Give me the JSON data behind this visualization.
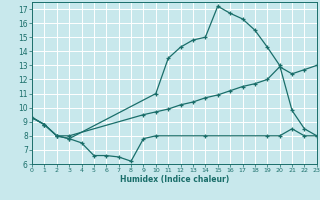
{
  "xlabel": "Humidex (Indice chaleur)",
  "bg_color": "#c8e8ec",
  "grid_color": "#ffffff",
  "line_color": "#1a6e6a",
  "xlim": [
    0,
    23
  ],
  "ylim": [
    6,
    17.5
  ],
  "xticks": [
    0,
    1,
    2,
    3,
    4,
    5,
    6,
    7,
    8,
    9,
    10,
    11,
    12,
    13,
    14,
    15,
    16,
    17,
    18,
    19,
    20,
    21,
    22,
    23
  ],
  "yticks": [
    6,
    7,
    8,
    9,
    10,
    11,
    12,
    13,
    14,
    15,
    16,
    17
  ],
  "curve_bottom_x": [
    0,
    1,
    2,
    3,
    4,
    5,
    6,
    7,
    8,
    9,
    10,
    14,
    19,
    20,
    21,
    22,
    23
  ],
  "curve_bottom_y": [
    9.3,
    8.8,
    8.0,
    7.8,
    7.5,
    6.6,
    6.6,
    6.5,
    6.2,
    7.8,
    8.0,
    8.0,
    8.0,
    8.0,
    8.5,
    8.0,
    8.0
  ],
  "curve_middle_x": [
    0,
    1,
    2,
    3,
    9,
    10,
    11,
    12,
    13,
    14,
    15,
    16,
    17,
    18,
    19,
    20,
    21,
    22,
    23
  ],
  "curve_middle_y": [
    9.3,
    8.8,
    8.0,
    8.0,
    9.5,
    9.7,
    9.9,
    10.2,
    10.4,
    10.7,
    10.9,
    11.2,
    11.5,
    11.7,
    12.0,
    12.9,
    12.4,
    12.7,
    13.0
  ],
  "curve_top_x": [
    0,
    1,
    2,
    3,
    10,
    11,
    12,
    13,
    14,
    15,
    16,
    17,
    18,
    19,
    20,
    21,
    22,
    23
  ],
  "curve_top_y": [
    9.3,
    8.8,
    8.0,
    7.8,
    11.0,
    13.5,
    14.3,
    14.8,
    15.0,
    17.2,
    16.7,
    16.3,
    15.5,
    14.3,
    13.0,
    9.8,
    8.5,
    8.0
  ]
}
